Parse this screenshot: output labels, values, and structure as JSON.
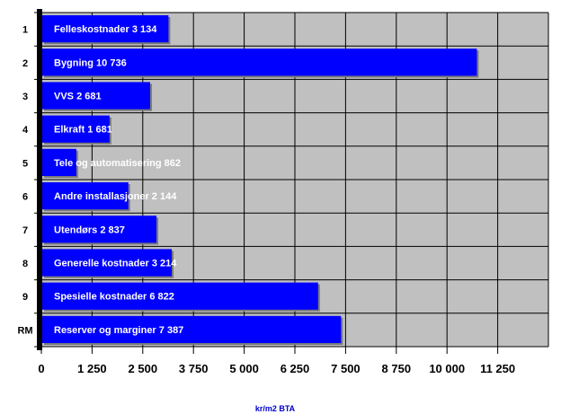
{
  "chart_data": {
    "type": "bar",
    "orientation": "horizontal",
    "categories": [
      "1",
      "2",
      "3",
      "4",
      "5",
      "6",
      "7",
      "8",
      "9",
      "RM"
    ],
    "series": [
      {
        "values": [
          3134,
          10736,
          2681,
          1681,
          862,
          2144,
          2837,
          3214,
          6822,
          7387
        ],
        "labels": [
          "Felleskostnader 3 134",
          "Bygning 10 736",
          "VVS 2 681",
          "Elkraft 1 681",
          "Tele og automatisering 862",
          "Andre installasjoner 2 144",
          "Utendørs 2 837",
          "Generelle kostnader 3 214",
          "Spesielle kostnader 6 822",
          "Reserver og marginer 7 387"
        ]
      }
    ],
    "xlabel": "kr/m2 BTA",
    "ylabel": "",
    "xlim": [
      0,
      12500
    ],
    "xticks": [
      0,
      1250,
      2500,
      3750,
      5000,
      6250,
      7500,
      8750,
      10000,
      11250
    ],
    "xtick_labels": [
      "0",
      "1 250",
      "2 500",
      "3 750",
      "5 000",
      "6 250",
      "7 500",
      "8 750",
      "10 000",
      "11 250"
    ],
    "grid": true,
    "legend": "none",
    "colors": {
      "bar": "#0000ff",
      "plot_background": "#c0c0c0",
      "grid": "#000000",
      "axis_title": "#0000cc"
    }
  }
}
